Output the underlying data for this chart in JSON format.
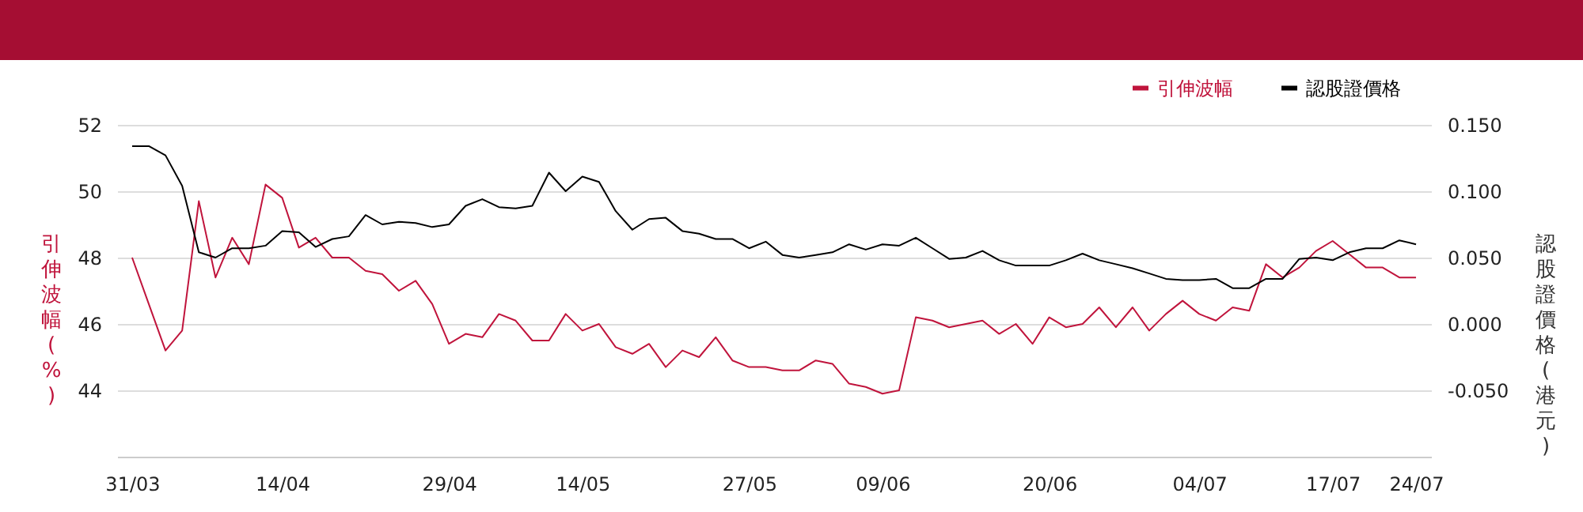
{
  "chart_data": {
    "type": "line",
    "categories": [
      "31/03",
      null,
      null,
      null,
      null,
      null,
      null,
      null,
      null,
      "14/04",
      null,
      null,
      null,
      null,
      null,
      null,
      null,
      null,
      null,
      "29/04",
      null,
      null,
      null,
      null,
      null,
      null,
      null,
      "14/05",
      null,
      null,
      null,
      null,
      null,
      null,
      null,
      null,
      null,
      "27/05",
      null,
      null,
      null,
      null,
      null,
      null,
      null,
      "09/06",
      null,
      null,
      null,
      null,
      null,
      null,
      null,
      null,
      null,
      "20/06",
      null,
      null,
      null,
      null,
      null,
      null,
      null,
      null,
      "04/07",
      null,
      null,
      null,
      null,
      null,
      null,
      null,
      "17/07",
      null,
      null,
      null,
      null,
      "24/07"
    ],
    "series": [
      {
        "name": "引伸波幅",
        "color": "#c0143c",
        "axis": "y",
        "values": [
          48.0,
          46.6,
          45.2,
          45.8,
          49.7,
          47.4,
          48.6,
          47.8,
          50.2,
          49.8,
          48.3,
          48.6,
          48.0,
          48.0,
          47.6,
          47.5,
          47.0,
          47.3,
          46.6,
          45.4,
          45.7,
          45.6,
          46.3,
          46.1,
          45.5,
          45.5,
          46.3,
          45.8,
          46.0,
          45.3,
          45.1,
          45.4,
          44.7,
          45.2,
          45.0,
          45.6,
          44.9,
          44.7,
          44.7,
          44.6,
          44.6,
          44.9,
          44.8,
          44.2,
          44.1,
          43.9,
          44.0,
          46.2,
          46.1,
          45.9,
          46.0,
          46.1,
          45.7,
          46.0,
          45.4,
          46.2,
          45.9,
          46.0,
          46.5,
          45.9,
          46.5,
          45.8,
          46.3,
          46.7,
          46.3,
          46.1,
          46.5,
          46.4,
          47.8,
          47.4,
          47.7,
          48.2,
          48.5,
          48.1,
          47.7,
          47.7,
          47.4,
          47.4
        ]
      },
      {
        "name": "認股證價格",
        "color": "#000000",
        "axis": "y2",
        "values": [
          0.134,
          0.134,
          0.127,
          0.104,
          0.054,
          0.05,
          0.057,
          0.057,
          0.059,
          0.07,
          0.069,
          0.058,
          0.064,
          0.066,
          0.082,
          0.075,
          0.077,
          0.076,
          0.073,
          0.075,
          0.089,
          0.094,
          0.088,
          0.087,
          0.089,
          0.114,
          0.1,
          0.111,
          0.107,
          0.085,
          0.071,
          0.079,
          0.08,
          0.07,
          0.068,
          0.064,
          0.064,
          0.057,
          0.062,
          0.052,
          0.05,
          0.052,
          0.054,
          0.06,
          0.056,
          0.06,
          0.059,
          0.065,
          0.057,
          0.049,
          0.05,
          0.055,
          0.048,
          0.044,
          0.044,
          0.044,
          0.048,
          0.053,
          0.048,
          0.045,
          0.042,
          0.038,
          0.034,
          0.033,
          0.033,
          0.034,
          0.027,
          0.027,
          0.034,
          0.034,
          0.049,
          0.05,
          0.048,
          0.054,
          0.057,
          0.057,
          0.063,
          0.06
        ]
      }
    ],
    "ylabel": "引伸波幅(%)",
    "y2label": "認股證價格(港元)",
    "ylim": [
      42,
      52
    ],
    "yticks": [
      44,
      46,
      48,
      50,
      52
    ],
    "y2lim": [
      -0.1,
      0.15
    ],
    "y2ticks": [
      {
        "value": -0.05,
        "label": "-0.050"
      },
      {
        "value": 0,
        "label": "0.000"
      },
      {
        "value": 0.05,
        "label": "0.050"
      },
      {
        "value": 0.1,
        "label": "0.100"
      },
      {
        "value": 0.15,
        "label": "0.150"
      }
    ],
    "grid": "y",
    "legend": "top right"
  }
}
